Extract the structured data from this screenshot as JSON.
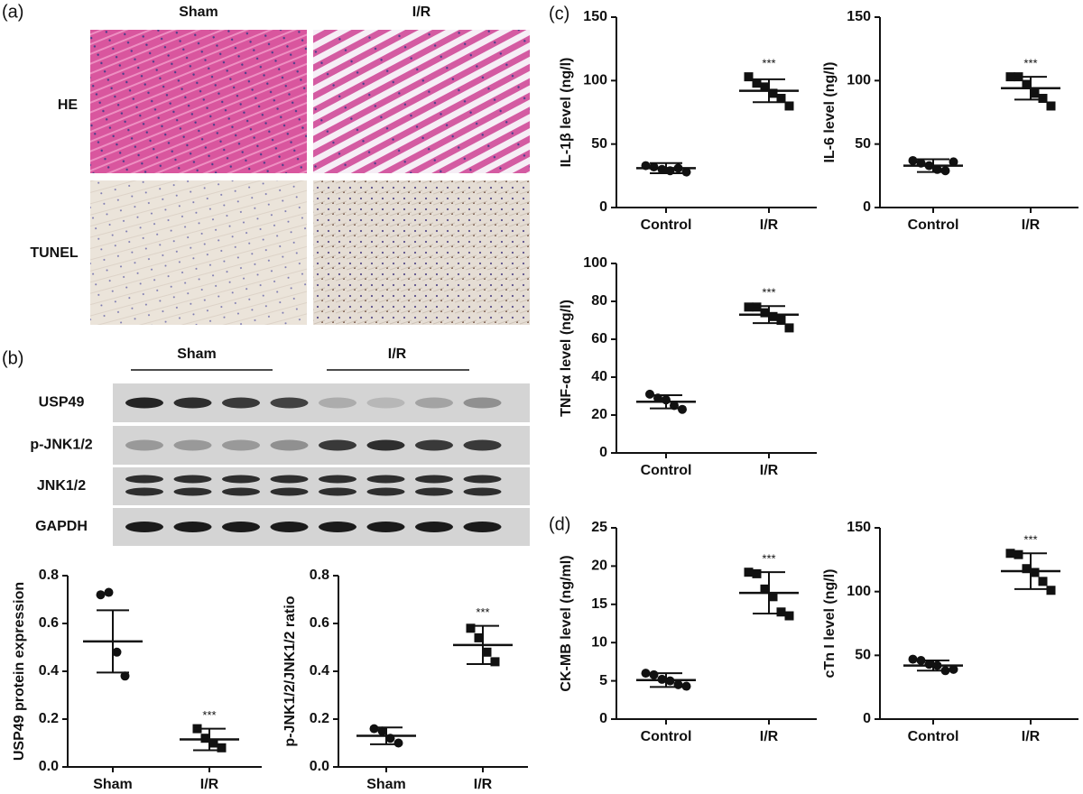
{
  "panels": [
    "(a)",
    "(b)",
    "(c)",
    "(d)"
  ],
  "histology": {
    "columns": [
      "Sham",
      "I/R"
    ],
    "rows": [
      "HE",
      "TUNEL"
    ]
  },
  "blot": {
    "groups": [
      "Sham",
      "I/R"
    ],
    "rows": [
      "USP49",
      "p-JNK1/2",
      "JNK1/2",
      "GAPDH"
    ]
  },
  "chart_data": [
    {
      "type": "dot",
      "ylabel": "USP49 protein expression",
      "ylim": [
        0,
        0.8
      ],
      "yticks": [
        {
          "value": 0,
          "label": "0.0"
        },
        0.2,
        0.4,
        0.6,
        0.8
      ],
      "groups": [
        {
          "name": "Sham",
          "marker": "circle",
          "points": [
            0.72,
            0.73,
            0.48,
            0.38
          ],
          "mean": 0.525,
          "sd": 0.13
        },
        {
          "name": "I/R",
          "marker": "square",
          "points": [
            0.16,
            0.12,
            0.1,
            0.08
          ],
          "mean": 0.115,
          "sd": 0.045,
          "significance": "***"
        }
      ]
    },
    {
      "type": "dot",
      "ylabel": "p-JNK1/2/JNK1/2 ratio",
      "ylim": [
        0,
        0.8
      ],
      "yticks": [
        {
          "value": 0,
          "label": "0.0"
        },
        0.2,
        0.4,
        0.6,
        0.8
      ],
      "groups": [
        {
          "name": "Sham",
          "marker": "circle",
          "points": [
            0.16,
            0.15,
            0.12,
            0.1
          ],
          "mean": 0.13,
          "sd": 0.035
        },
        {
          "name": "I/R",
          "marker": "square",
          "points": [
            0.58,
            0.54,
            0.48,
            0.44
          ],
          "mean": 0.51,
          "sd": 0.08,
          "significance": "***"
        }
      ]
    },
    {
      "type": "dot",
      "ylabel": "IL-1β level (ng/l)",
      "ylim": [
        0,
        150
      ],
      "yticks": [
        0,
        50,
        100,
        150
      ],
      "groups": [
        {
          "name": "Control",
          "marker": "circle",
          "points": [
            33,
            32,
            30,
            29,
            31,
            28
          ],
          "mean": 31,
          "sd": 4
        },
        {
          "name": "I/R",
          "marker": "square",
          "points": [
            103,
            98,
            95,
            90,
            86,
            80
          ],
          "mean": 92,
          "sd": 9,
          "significance": "***"
        }
      ]
    },
    {
      "type": "dot",
      "ylabel": "IL-6 level (ng/l)",
      "ylim": [
        0,
        150
      ],
      "yticks": [
        0,
        50,
        100,
        150
      ],
      "groups": [
        {
          "name": "Control",
          "marker": "circle",
          "points": [
            37,
            35,
            33,
            30,
            29,
            36
          ],
          "mean": 33,
          "sd": 5
        },
        {
          "name": "I/R",
          "marker": "square",
          "points": [
            103,
            103,
            97,
            90,
            86,
            80
          ],
          "mean": 94,
          "sd": 9,
          "significance": "***"
        }
      ]
    },
    {
      "type": "dot",
      "ylabel": "TNF-α level (ng/l)",
      "ylim": [
        0,
        100
      ],
      "yticks": [
        0,
        20,
        40,
        60,
        80,
        100
      ],
      "groups": [
        {
          "name": "Control",
          "marker": "circle",
          "points": [
            31,
            29,
            28,
            25,
            23
          ],
          "mean": 27,
          "sd": 3.5
        },
        {
          "name": "I/R",
          "marker": "square",
          "points": [
            77,
            77,
            74,
            72,
            70,
            66
          ],
          "mean": 73,
          "sd": 4.5,
          "significance": "***"
        }
      ]
    },
    {
      "type": "dot",
      "ylabel": "CK-MB level (ng/ml)",
      "ylim": [
        0,
        25
      ],
      "yticks": [
        0,
        5,
        10,
        15,
        20,
        25
      ],
      "groups": [
        {
          "name": "Control",
          "marker": "circle",
          "points": [
            6,
            5.8,
            5.2,
            5,
            4.5,
            4.3
          ],
          "mean": 5.1,
          "sd": 0.9
        },
        {
          "name": "I/R",
          "marker": "square",
          "points": [
            19.2,
            19,
            17,
            16,
            14,
            13.5
          ],
          "mean": 16.5,
          "sd": 2.7,
          "significance": "***"
        }
      ]
    },
    {
      "type": "dot",
      "ylabel": "cTn I level (ng/l)",
      "ylim": [
        0,
        150
      ],
      "yticks": [
        0,
        50,
        100,
        150
      ],
      "groups": [
        {
          "name": "Control",
          "marker": "circle",
          "points": [
            47,
            46,
            43,
            42,
            38,
            39
          ],
          "mean": 42,
          "sd": 4
        },
        {
          "name": "I/R",
          "marker": "square",
          "points": [
            130,
            129,
            118,
            115,
            108,
            101
          ],
          "mean": 116,
          "sd": 14,
          "significance": "***"
        }
      ]
    }
  ]
}
